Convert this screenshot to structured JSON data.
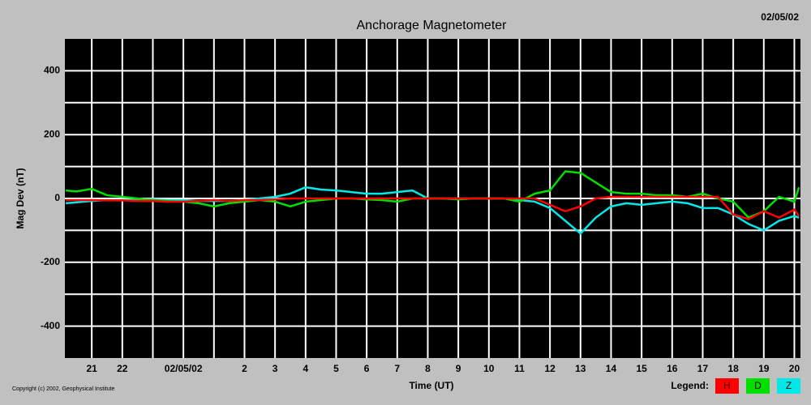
{
  "chart_data": {
    "type": "line",
    "title": "Anchorage Magnetometer",
    "date": "02/05/02",
    "ylabel": "Mag Dev (nT)",
    "xlabel": "Time (UT)",
    "copyright": "Copyright (c) 2002, Geophysical Institute",
    "legend_title": "Legend:",
    "xlim": [
      -3.88,
      20.2
    ],
    "ylim": [
      -500,
      500
    ],
    "xticks": [
      {
        "value": -3,
        "label": "21"
      },
      {
        "value": -2,
        "label": "22"
      },
      {
        "value": -1
      },
      {
        "value": 0,
        "label": "02/05/02"
      },
      {
        "value": 1
      },
      2,
      3,
      4,
      5,
      6,
      7,
      8,
      9,
      10,
      11,
      12,
      13,
      14,
      15,
      16,
      17,
      18,
      19,
      20
    ],
    "yticks": [
      {
        "value": -400,
        "label": "-400"
      },
      {
        "value": -300
      },
      {
        "value": -200,
        "label": "-200"
      },
      {
        "value": -100
      },
      0,
      {
        "value": 100
      },
      200,
      {
        "value": 300
      },
      400
    ],
    "grid": true,
    "x": [
      -3.85,
      -3.5,
      -3,
      -2.5,
      -2,
      -1.5,
      -1,
      -0.5,
      0,
      0.5,
      1,
      1.5,
      2,
      2.5,
      3,
      3.5,
      4,
      4.5,
      5,
      5.5,
      6,
      6.5,
      7,
      7.5,
      8,
      8.5,
      9,
      9.5,
      10,
      10.5,
      11,
      11.5,
      12,
      12.5,
      13,
      13.5,
      14,
      14.5,
      15,
      15.5,
      16,
      16.5,
      17,
      17.5,
      18,
      18.5,
      19,
      19.5,
      20,
      20.15
    ],
    "series": [
      {
        "name": "H",
        "color": "#ff0000",
        "values": [
          -5,
          -5,
          -5,
          -6,
          -6,
          -8,
          -8,
          -10,
          -10,
          -8,
          -5,
          -8,
          -5,
          -5,
          -3,
          0,
          0,
          0,
          0,
          0,
          0,
          0,
          0,
          0,
          0,
          0,
          0,
          0,
          0,
          0,
          0,
          0,
          -20,
          -40,
          -25,
          0,
          5,
          5,
          5,
          5,
          5,
          5,
          5,
          5,
          -50,
          -65,
          -40,
          -60,
          -35,
          -55
        ]
      },
      {
        "name": "D",
        "color": "#00e000",
        "values": [
          25,
          22,
          30,
          10,
          5,
          0,
          -5,
          -8,
          -10,
          -15,
          -25,
          -15,
          -10,
          -5,
          -10,
          -25,
          -10,
          -5,
          0,
          0,
          -3,
          -5,
          -10,
          0,
          0,
          0,
          -3,
          0,
          0,
          0,
          -10,
          15,
          25,
          85,
          80,
          50,
          20,
          15,
          15,
          10,
          10,
          5,
          15,
          0,
          -10,
          -60,
          -40,
          5,
          -10,
          35
        ]
      },
      {
        "name": "Z",
        "color": "#00e8e8",
        "values": [
          -15,
          -12,
          -8,
          -5,
          -5,
          -5,
          -3,
          -5,
          -5,
          -8,
          -8,
          -8,
          -5,
          0,
          5,
          15,
          35,
          28,
          25,
          20,
          15,
          15,
          20,
          25,
          0,
          0,
          0,
          0,
          0,
          0,
          -5,
          -10,
          -30,
          -70,
          -110,
          -60,
          -25,
          -15,
          -20,
          -15,
          -10,
          -15,
          -30,
          -30,
          -50,
          -80,
          -100,
          -70,
          -55,
          -60
        ]
      }
    ]
  }
}
